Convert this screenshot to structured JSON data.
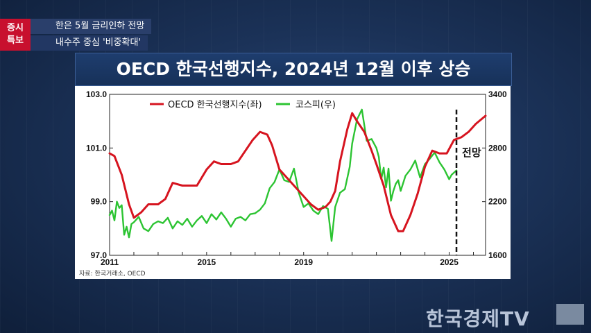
{
  "banner": {
    "badge_line1": "증시",
    "badge_line2": "특보",
    "headline1": "한은 5월 금리인하 전망",
    "headline2": "내수주 중심 '비중확대'"
  },
  "title": "OECD 한국선행지수, 2024년 12월 이후 상승",
  "source": "자료: 한국거래소, OECD",
  "brand": "한국경제TV",
  "chart_data": {
    "type": "line",
    "xlim": [
      2011.0,
      2026.5
    ],
    "x_ticks": [
      2011,
      2015,
      2019,
      2025
    ],
    "left_axis": {
      "range": [
        97.0,
        103.0
      ],
      "ticks": [
        "103.0",
        "101.0",
        "99.0",
        "97.0"
      ],
      "tick_values": [
        103.0,
        101.0,
        99.0,
        97.0
      ]
    },
    "right_axis": {
      "range": [
        1600,
        3400
      ],
      "ticks": [
        "3400",
        "2800",
        "2200",
        "1600"
      ],
      "tick_values": [
        3400,
        2800,
        2200,
        1600
      ]
    },
    "forecast_marker": {
      "x": 2025.3,
      "label": "전망"
    },
    "series": [
      {
        "name": "OECD 한국선행지수(좌)",
        "axis": "left",
        "color": "#d6141f",
        "x": [
          2011.0,
          2011.2,
          2011.5,
          2011.8,
          2012.0,
          2012.3,
          2012.6,
          2013.0,
          2013.3,
          2013.6,
          2014.0,
          2014.3,
          2014.6,
          2015.0,
          2015.3,
          2015.6,
          2016.0,
          2016.3,
          2016.6,
          2016.9,
          2017.2,
          2017.5,
          2017.7,
          2018.0,
          2018.3,
          2018.6,
          2019.0,
          2019.3,
          2019.6,
          2019.9,
          2020.1,
          2020.3,
          2020.5,
          2020.8,
          2021.0,
          2021.2,
          2021.5,
          2021.8,
          2022.0,
          2022.3,
          2022.6,
          2022.9,
          2023.1,
          2023.4,
          2023.7,
          2024.0,
          2024.3,
          2024.6,
          2024.9,
          2025.2,
          2025.5,
          2025.8,
          2026.1,
          2026.5
        ],
        "values": [
          100.8,
          100.7,
          100.0,
          98.9,
          98.4,
          98.6,
          98.9,
          98.9,
          99.1,
          99.7,
          99.6,
          99.6,
          99.6,
          100.2,
          100.5,
          100.4,
          100.4,
          100.5,
          100.9,
          101.3,
          101.6,
          101.5,
          101.1,
          100.2,
          99.9,
          99.6,
          99.2,
          98.9,
          98.7,
          98.8,
          99.0,
          99.4,
          100.5,
          101.7,
          102.3,
          102.0,
          101.6,
          100.9,
          100.4,
          99.6,
          98.5,
          97.9,
          97.9,
          98.5,
          99.3,
          100.3,
          100.9,
          100.8,
          100.8,
          101.3,
          101.4,
          101.6,
          101.9,
          102.2
        ]
      },
      {
        "name": "코스피(우)",
        "axis": "right",
        "color": "#2cc432",
        "x": [
          2011.0,
          2011.1,
          2011.2,
          2011.3,
          2011.4,
          2011.5,
          2011.6,
          2011.7,
          2011.8,
          2011.9,
          2012.0,
          2012.2,
          2012.4,
          2012.6,
          2012.8,
          2013.0,
          2013.2,
          2013.4,
          2013.6,
          2013.8,
          2014.0,
          2014.2,
          2014.4,
          2014.6,
          2014.8,
          2015.0,
          2015.2,
          2015.4,
          2015.6,
          2015.8,
          2016.0,
          2016.2,
          2016.4,
          2016.6,
          2016.8,
          2017.0,
          2017.2,
          2017.4,
          2017.6,
          2017.8,
          2018.0,
          2018.2,
          2018.4,
          2018.6,
          2018.8,
          2019.0,
          2019.2,
          2019.4,
          2019.6,
          2019.8,
          2020.0,
          2020.15,
          2020.3,
          2020.5,
          2020.7,
          2020.9,
          2021.0,
          2021.2,
          2021.4,
          2021.6,
          2021.8,
          2022.0,
          2022.1,
          2022.2,
          2022.3,
          2022.4,
          2022.5,
          2022.6,
          2022.7,
          2022.8,
          2022.9,
          2023.0,
          2023.2,
          2023.4,
          2023.6,
          2023.8,
          2024.0,
          2024.2,
          2024.4,
          2024.6,
          2024.8,
          2025.0,
          2025.1,
          2025.3
        ],
        "values": [
          2050,
          2100,
          1990,
          2200,
          2130,
          2160,
          1830,
          1920,
          1800,
          1950,
          1970,
          2030,
          1900,
          1870,
          1950,
          1980,
          1960,
          2020,
          1900,
          1980,
          1940,
          2010,
          1920,
          1990,
          2040,
          1960,
          2060,
          2000,
          2080,
          2010,
          1920,
          2010,
          2030,
          1990,
          2060,
          2070,
          2110,
          2180,
          2350,
          2420,
          2560,
          2440,
          2420,
          2570,
          2300,
          2140,
          2180,
          2100,
          2060,
          2150,
          2120,
          1760,
          2140,
          2300,
          2340,
          2590,
          2850,
          3120,
          3230,
          2880,
          2900,
          2800,
          2700,
          2450,
          2580,
          2360,
          2570,
          2210,
          2320,
          2400,
          2440,
          2320,
          2490,
          2560,
          2660,
          2470,
          2620,
          2680,
          2750,
          2640,
          2560,
          2450,
          2500,
          2550
        ]
      }
    ]
  }
}
